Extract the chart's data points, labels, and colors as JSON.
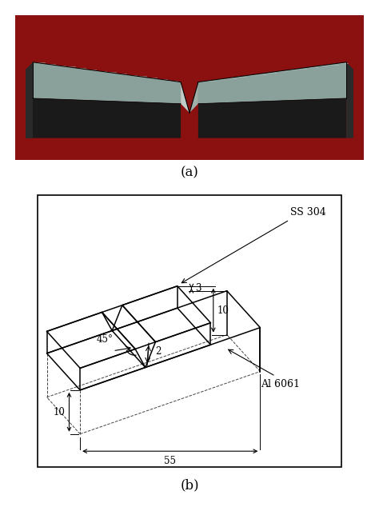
{
  "fig_width": 4.74,
  "fig_height": 6.34,
  "label_a": "(a)",
  "label_b": "(b)",
  "label_ss304": "SS 304",
  "label_al6061": "Al 6061",
  "label_45deg": "45°",
  "label_2": "2",
  "label_3": "3",
  "label_10_side": "10",
  "label_10_bottom": "10",
  "label_55": "55",
  "background_color": "#ffffff",
  "photo_bg_color": "#8B1010",
  "metal_top_color": "#9ab0a8",
  "metal_dark_color": "#1c1c1c",
  "metal_notch_color": "#c8d4cc"
}
